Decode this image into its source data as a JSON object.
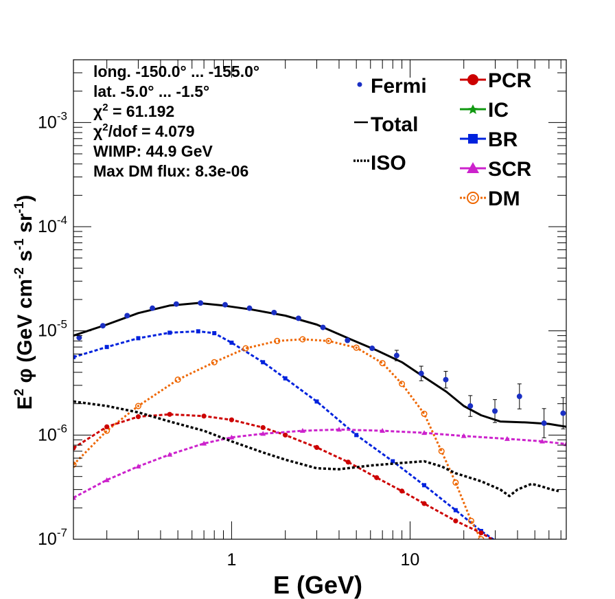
{
  "chart_data": {
    "type": "line",
    "x_scale": "log",
    "y_scale": "log",
    "xlim": [
      0.13,
      75
    ],
    "ylim": [
      1e-07,
      0.004
    ],
    "xlabel": "E (GeV)",
    "ylabel": "E² φ (GeV cm⁻² s⁻¹ sr⁻¹)",
    "ylabel_parts": {
      "a": "E",
      "a_sup": "2",
      "b": "  φ (GeV cm",
      "b_sup": "-2",
      "c": " s",
      "c_sup": "-1",
      "d": " sr",
      "d_sup": "-1",
      "e": ")"
    },
    "x_ticks": [
      {
        "value": 1,
        "label": "1"
      },
      {
        "value": 10,
        "label": "10"
      }
    ],
    "y_ticks": [
      {
        "value": 1e-07,
        "base": "10",
        "exp": "-7"
      },
      {
        "value": 1e-06,
        "base": "10",
        "exp": "-6"
      },
      {
        "value": 1e-05,
        "base": "10",
        "exp": "-5"
      },
      {
        "value": 0.0001,
        "base": "10",
        "exp": "-4"
      },
      {
        "value": 0.001,
        "base": "10",
        "exp": "-3"
      }
    ],
    "grid": false,
    "info_lines": [
      {
        "text": "long. -150.0° ... -155.0°"
      },
      {
        "text": "lat. -5.0° ... -1.5°"
      },
      {
        "pre": "χ",
        "sup": "2",
        "text": " = 61.192"
      },
      {
        "pre": "χ",
        "sup": "2",
        "text": "/dof = 4.079"
      },
      {
        "text": "WIMP: 44.9 GeV"
      },
      {
        "text": "Max DM flux: 8.3e-06"
      }
    ],
    "legend_position": "top-right",
    "legend_left": [
      {
        "name": "Fermi",
        "style": "dot"
      },
      {
        "name": "Total",
        "style": "line"
      },
      {
        "name": "ISO",
        "style": "dotted"
      }
    ],
    "legend_right": [
      {
        "name": "PCR",
        "style": "circle"
      },
      {
        "name": "IC",
        "style": "star"
      },
      {
        "name": "BR",
        "style": "square"
      },
      {
        "name": "SCR",
        "style": "triangle"
      },
      {
        "name": "DM",
        "style": "open-circle"
      }
    ],
    "colors": {
      "Fermi": "#1a2fc4",
      "Total": "#000000",
      "ISO": "#000000",
      "PCR": "#cc0000",
      "IC": "#119911",
      "BR": "#0022dd",
      "SCR": "#cc22cc",
      "DM": "#ee6600"
    },
    "fermi": [
      {
        "x": 0.14,
        "y": 8.6e-06,
        "err": 0
      },
      {
        "x": 0.19,
        "y": 1.12e-05,
        "err": 0
      },
      {
        "x": 0.26,
        "y": 1.4e-05,
        "err": 0
      },
      {
        "x": 0.36,
        "y": 1.65e-05,
        "err": 0
      },
      {
        "x": 0.49,
        "y": 1.81e-05,
        "err": 0
      },
      {
        "x": 0.67,
        "y": 1.85e-05,
        "err": 0
      },
      {
        "x": 0.92,
        "y": 1.78e-05,
        "err": 0
      },
      {
        "x": 1.26,
        "y": 1.65e-05,
        "err": 0
      },
      {
        "x": 1.73,
        "y": 1.5e-05,
        "err": 0
      },
      {
        "x": 2.37,
        "y": 1.32e-05,
        "err": 0
      },
      {
        "x": 3.25,
        "y": 1.08e-05,
        "err": 0
      },
      {
        "x": 4.46,
        "y": 8.1e-06,
        "err": 0
      },
      {
        "x": 6.13,
        "y": 6.8e-06,
        "err": 0
      },
      {
        "x": 8.41,
        "y": 5.8e-06,
        "err": 0.05
      },
      {
        "x": 11.55,
        "y": 3.9e-06,
        "err": 0.07
      },
      {
        "x": 15.85,
        "y": 3.4e-06,
        "err": 0.08
      },
      {
        "x": 21.76,
        "y": 1.9e-06,
        "err": 0.1
      },
      {
        "x": 29.87,
        "y": 1.7e-06,
        "err": 0.11
      },
      {
        "x": 41.0,
        "y": 2.35e-06,
        "err": 0.12
      },
      {
        "x": 56.3,
        "y": 1.3e-06,
        "err": 0.14
      },
      {
        "x": 72.0,
        "y": 1.62e-06,
        "err": 0.15
      }
    ],
    "series": [
      {
        "name": "Total",
        "x": [
          0.13,
          0.2,
          0.3,
          0.45,
          0.65,
          0.9,
          1.3,
          2.0,
          3.0,
          4.5,
          6.5,
          9.0,
          12,
          16,
          20,
          25,
          32,
          45,
          60,
          75
        ],
        "y": [
          9e-06,
          1.15e-05,
          1.48e-05,
          1.75e-05,
          1.85e-05,
          1.75e-05,
          1.6e-05,
          1.4e-05,
          1.15e-05,
          8.5e-06,
          6.5e-06,
          5e-06,
          3.6e-06,
          2.6e-06,
          1.9e-06,
          1.55e-06,
          1.35e-06,
          1.32e-06,
          1.28e-06,
          1.2e-06
        ]
      },
      {
        "name": "BR",
        "x": [
          0.13,
          0.2,
          0.3,
          0.45,
          0.65,
          0.8,
          1.0,
          1.5,
          2.0,
          3.0,
          5.0,
          8.0,
          12,
          18,
          25,
          32
        ],
        "y": [
          5.6e-06,
          7e-06,
          8.5e-06,
          9.6e-06,
          9.9e-06,
          9.5e-06,
          7.7e-06,
          5e-06,
          3.5e-06,
          2.1e-06,
          1e-06,
          5.6e-07,
          3.3e-07,
          1.9e-07,
          1.2e-07,
          9e-08
        ]
      },
      {
        "name": "DM",
        "x": [
          0.13,
          0.2,
          0.3,
          0.5,
          0.8,
          1.2,
          1.8,
          2.5,
          3.5,
          5.0,
          7.0,
          9.0,
          12,
          15,
          18,
          22,
          25
        ],
        "y": [
          5.2e-07,
          1.1e-06,
          1.9e-06,
          3.4e-06,
          5e-06,
          6.8e-06,
          8e-06,
          8.3e-06,
          8e-06,
          6.9e-06,
          4.9e-06,
          3.1e-06,
          1.6e-06,
          7e-07,
          3.5e-07,
          1.5e-07,
          1e-07
        ]
      },
      {
        "name": "PCR",
        "x": [
          0.13,
          0.2,
          0.3,
          0.45,
          0.7,
          1.0,
          1.5,
          2.0,
          3.0,
          4.5,
          6.5,
          9.0,
          12,
          18,
          25,
          32
        ],
        "y": [
          7.5e-07,
          1.2e-06,
          1.5e-06,
          1.58e-06,
          1.52e-06,
          1.4e-06,
          1.18e-06,
          1e-06,
          7.6e-07,
          5.5e-07,
          3.9e-07,
          2.9e-07,
          2.2e-07,
          1.5e-07,
          1.15e-07,
          9e-08
        ]
      },
      {
        "name": "SCR",
        "x": [
          0.13,
          0.2,
          0.3,
          0.45,
          0.7,
          1.0,
          1.5,
          2.5,
          4.0,
          7.0,
          12,
          20,
          35,
          55,
          75
        ],
        "y": [
          2.5e-07,
          3.7e-07,
          5e-07,
          6.5e-07,
          8.3e-07,
          9.5e-07,
          1.03e-06,
          1.1e-06,
          1.13e-06,
          1.1e-06,
          1.05e-06,
          9.8e-07,
          9.2e-07,
          8.7e-07,
          8.2e-07
        ]
      },
      {
        "name": "ISO",
        "x": [
          0.13,
          0.2,
          0.3,
          0.45,
          0.7,
          1.0,
          1.5,
          2.0,
          3.0,
          4.0,
          6.0,
          9.0,
          12,
          15,
          18,
          25,
          32,
          36,
          40,
          48,
          55,
          62,
          68
        ],
        "y": [
          2.1e-06,
          1.9e-06,
          1.65e-06,
          1.35e-06,
          1.1e-06,
          8.7e-07,
          6.8e-07,
          5.8e-07,
          4.8e-07,
          4.7e-07,
          5.1e-07,
          5.4e-07,
          5.6e-07,
          5e-07,
          4.3e-07,
          3.6e-07,
          3e-07,
          2.6e-07,
          3e-07,
          3.4e-07,
          3.2e-07,
          3e-07,
          2.9e-07
        ]
      }
    ]
  }
}
